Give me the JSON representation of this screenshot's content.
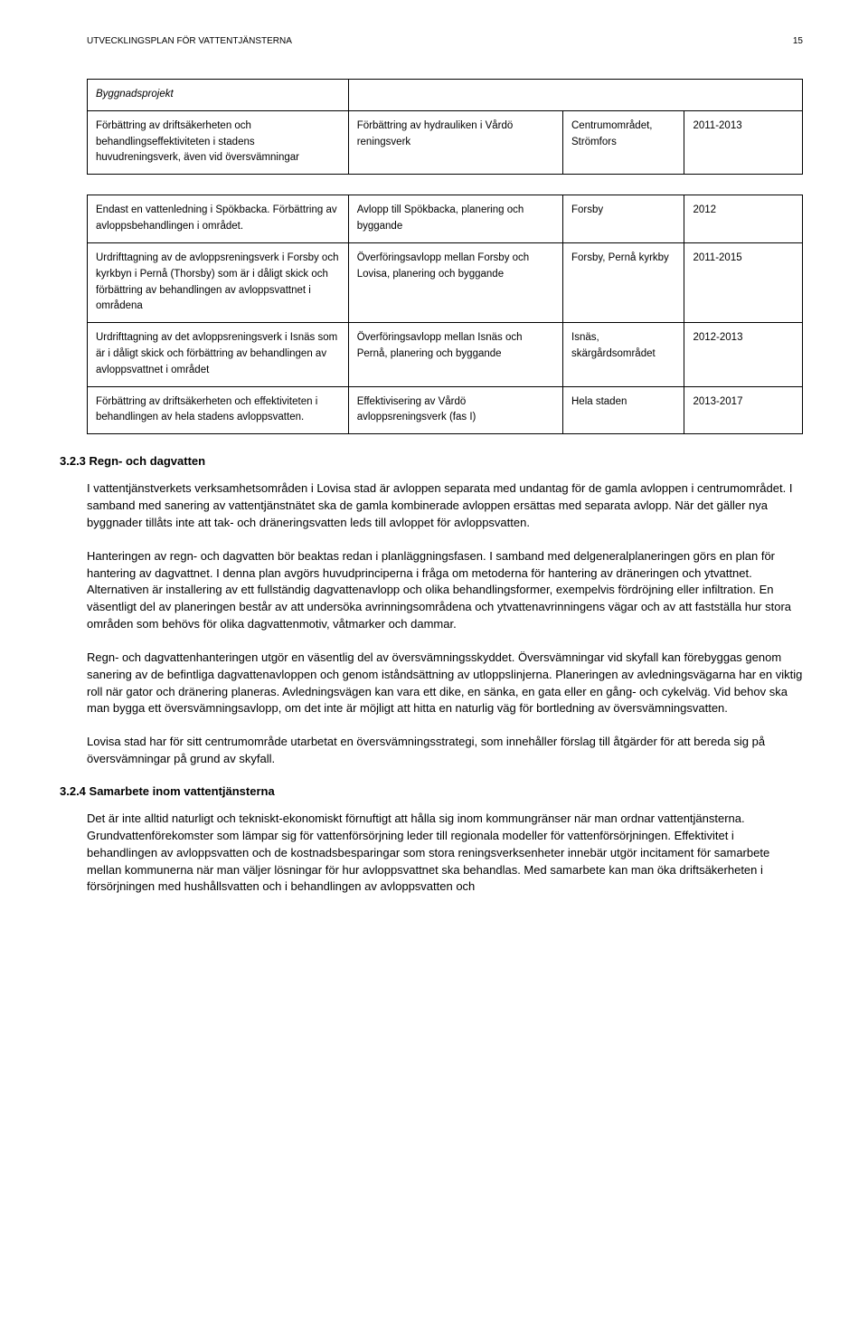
{
  "header": {
    "left": "UTVECKLINGSPLAN FÖR VATTENTJÄNSTERNA",
    "page": "15"
  },
  "table1": {
    "r0": {
      "c0": "Byggnadsprojekt",
      "c1": ""
    },
    "r1": {
      "c0": "Förbättring av driftsäkerheten och behandlingseffektiviteten i stadens huvudreningsverk, även vid översvämningar",
      "c1": "Förbättring av hydrauliken i Vårdö reningsverk",
      "c2": "Centrumområdet, Strömfors",
      "c3": "2011-2013"
    }
  },
  "table2": {
    "r0": {
      "c0": "Endast en vattenledning i Spökbacka. Förbättring av avloppsbehandlingen i området.",
      "c1": "Avlopp till Spökbacka, planering och byggande",
      "c2": "Forsby",
      "c3": "2012"
    },
    "r1": {
      "c0": "Urdrifttagning av de avloppsreningsverk i Forsby och kyrkbyn i Pernå (Thorsby) som är i dåligt skick och förbättring av behandlingen av avloppsvattnet i områdena",
      "c1": "Överföringsavlopp mellan Forsby och Lovisa, planering och byggande",
      "c2": "Forsby, Pernå kyrkby",
      "c3": "2011-2015"
    },
    "r2": {
      "c0": "Urdrifttagning av det avloppsreningsverk i Isnäs som är i dåligt skick och förbättring av behandlingen av avloppsvattnet i området",
      "c1": "Överföringsavlopp mellan Isnäs och Pernå, planering och byggande",
      "c2": "Isnäs, skärgårdsområdet",
      "c3": "2012-2013"
    },
    "r3": {
      "c0": "Förbättring av driftsäkerheten och effektiviteten i behandlingen av hela stadens avloppsvatten.",
      "c1": "Effektivisering av Vårdö avloppsreningsverk (fas I)",
      "c2": "Hela staden",
      "c3": "2013-2017"
    }
  },
  "headings": {
    "h323": "3.2.3 Regn- och dagvatten",
    "h324": "3.2.4 Samarbete inom vattentjänsterna"
  },
  "body": {
    "p1": "I vattentjänstverkets verksamhetsområden i Lovisa stad är avloppen separata med undantag för de gamla avloppen i centrumområdet. I samband med sanering av vattentjänstnätet ska de gamla kombinerade avloppen ersättas med separata avlopp. När det gäller nya byggnader tillåts inte att tak- och dräneringsvatten leds till avloppet för avloppsvatten.",
    "p2": "Hanteringen av regn- och dagvatten bör beaktas redan i planläggningsfasen. I samband med delgeneralplaneringen görs en plan för hantering av dagvattnet. I denna plan avgörs huvudprinciperna i fråga om metoderna för hantering av dräneringen och ytvattnet. Alternativen är installering av ett fullständig dagvattenavlopp och olika behandlingsformer, exempelvis fördröjning eller infiltration. En väsentligt del av planeringen består av att undersöka avrinningsområdena och ytvattenavrinningens vägar och av att fastställa hur stora områden som behövs för olika dagvattenmotiv, våtmarker och dammar.",
    "p3": "Regn- och dagvattenhanteringen utgör en väsentlig del av översvämningsskyddet. Översvämningar vid skyfall kan förebyggas genom sanering av de befintliga dagvattenavloppen och genom iståndsättning av utloppslinjerna. Planeringen av avledningsvägarna har en viktig roll när gator och dränering planeras. Avledningsvägen kan vara ett dike, en sänka, en gata eller en gång- och cykelväg. Vid behov ska man bygga ett översvämningsavlopp, om det inte är möjligt att hitta en naturlig väg för bortledning av översvämningsvatten.",
    "p4": "Lovisa stad har för sitt centrumområde utarbetat en översvämningsstrategi, som innehåller förslag till åtgärder för att bereda sig på översvämningar på grund av skyfall.",
    "p5": "Det är inte alltid naturligt och tekniskt-ekonomiskt förnuftigt att hålla sig inom kommungränser när man ordnar vattentjänsterna. Grundvattenförekomster som lämpar sig för vattenförsörjning leder till regionala modeller för vattenförsörjningen. Effektivitet i behandlingen av avloppsvatten och de kostnadsbesparingar som stora reningsverksenheter innebär utgör incitament för samarbete mellan kommunerna när man väljer lösningar för hur avloppsvattnet ska behandlas. Med samarbete kan man öka driftsäkerheten i försörjningen med hushållsvatten och i behandlingen av avloppsvatten och"
  }
}
